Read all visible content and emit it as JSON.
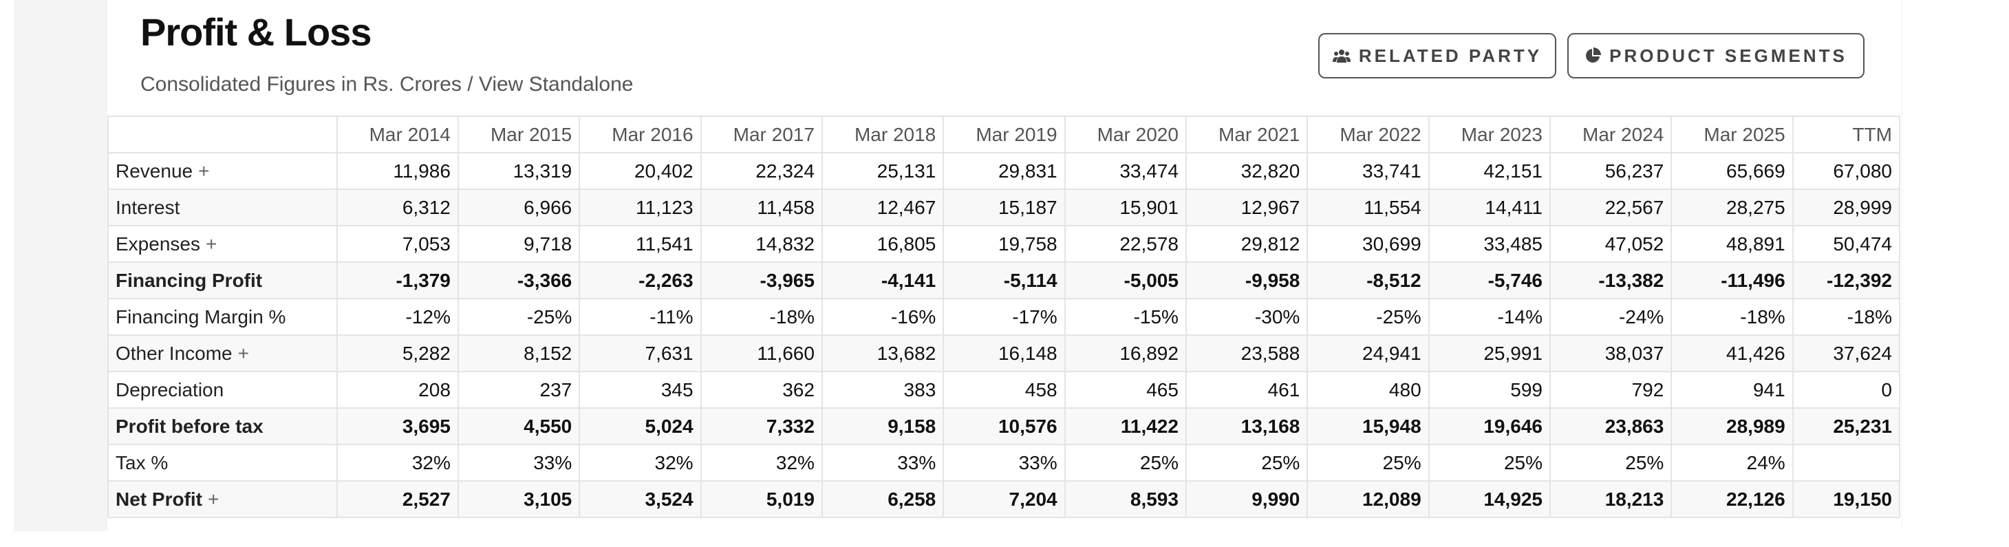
{
  "header": {
    "title": "Profit & Loss",
    "subtitle": "Consolidated Figures in Rs. Crores / View Standalone"
  },
  "buttons": {
    "related_party": {
      "label": "RELATED PARTY",
      "icon": "users-icon"
    },
    "product_segments": {
      "label": "PRODUCT SEGMENTS",
      "icon": "pie-chart-icon"
    }
  },
  "table": {
    "columns": [
      "",
      "Mar 2014",
      "Mar 2015",
      "Mar 2016",
      "Mar 2017",
      "Mar 2018",
      "Mar 2019",
      "Mar 2020",
      "Mar 2021",
      "Mar 2022",
      "Mar 2023",
      "Mar 2024",
      "Mar 2025",
      "TTM"
    ],
    "rows": [
      {
        "label": "Revenue",
        "expandable": true,
        "bold": false,
        "values": [
          "11,986",
          "13,319",
          "20,402",
          "22,324",
          "25,131",
          "29,831",
          "33,474",
          "32,820",
          "33,741",
          "42,151",
          "56,237",
          "65,669",
          "67,080"
        ]
      },
      {
        "label": "Interest",
        "expandable": false,
        "bold": false,
        "values": [
          "6,312",
          "6,966",
          "11,123",
          "11,458",
          "12,467",
          "15,187",
          "15,901",
          "12,967",
          "11,554",
          "14,411",
          "22,567",
          "28,275",
          "28,999"
        ]
      },
      {
        "label": "Expenses",
        "expandable": true,
        "bold": false,
        "values": [
          "7,053",
          "9,718",
          "11,541",
          "14,832",
          "16,805",
          "19,758",
          "22,578",
          "29,812",
          "30,699",
          "33,485",
          "47,052",
          "48,891",
          "50,474"
        ]
      },
      {
        "label": "Financing Profit",
        "expandable": false,
        "bold": true,
        "values": [
          "-1,379",
          "-3,366",
          "-2,263",
          "-3,965",
          "-4,141",
          "-5,114",
          "-5,005",
          "-9,958",
          "-8,512",
          "-5,746",
          "-13,382",
          "-11,496",
          "-12,392"
        ]
      },
      {
        "label": "Financing Margin %",
        "expandable": false,
        "bold": false,
        "values": [
          "-12%",
          "-25%",
          "-11%",
          "-18%",
          "-16%",
          "-17%",
          "-15%",
          "-30%",
          "-25%",
          "-14%",
          "-24%",
          "-18%",
          "-18%"
        ]
      },
      {
        "label": "Other Income",
        "expandable": true,
        "bold": false,
        "values": [
          "5,282",
          "8,152",
          "7,631",
          "11,660",
          "13,682",
          "16,148",
          "16,892",
          "23,588",
          "24,941",
          "25,991",
          "38,037",
          "41,426",
          "37,624"
        ]
      },
      {
        "label": "Depreciation",
        "expandable": false,
        "bold": false,
        "values": [
          "208",
          "237",
          "345",
          "362",
          "383",
          "458",
          "465",
          "461",
          "480",
          "599",
          "792",
          "941",
          "0"
        ]
      },
      {
        "label": "Profit before tax",
        "expandable": false,
        "bold": true,
        "values": [
          "3,695",
          "4,550",
          "5,024",
          "7,332",
          "9,158",
          "10,576",
          "11,422",
          "13,168",
          "15,948",
          "19,646",
          "23,863",
          "28,989",
          "25,231"
        ]
      },
      {
        "label": "Tax %",
        "expandable": false,
        "bold": false,
        "values": [
          "32%",
          "33%",
          "32%",
          "32%",
          "33%",
          "33%",
          "25%",
          "25%",
          "25%",
          "25%",
          "25%",
          "24%",
          ""
        ]
      },
      {
        "label": "Net Profit",
        "expandable": true,
        "bold": true,
        "values": [
          "2,527",
          "3,105",
          "3,524",
          "5,019",
          "6,258",
          "7,204",
          "8,593",
          "9,990",
          "12,089",
          "14,925",
          "18,213",
          "22,126",
          "19,150"
        ]
      }
    ]
  },
  "expand_symbol": "+",
  "colors": {
    "title": "#111111",
    "subtitle": "#555555",
    "border": "#e4e4e4",
    "stripe": "#f8f8f8",
    "button_border": "#555555"
  }
}
